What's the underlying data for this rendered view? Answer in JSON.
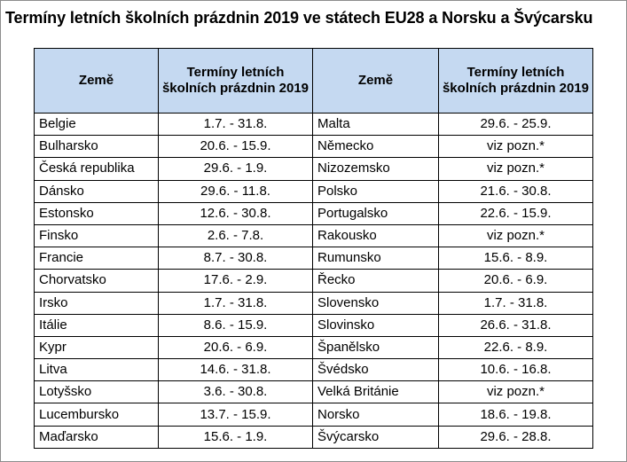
{
  "title": "Termíny letních školních prázdnin 2019 ve státech EU28 a Norsku a Švýcarsku",
  "headers": {
    "country": "Země",
    "dates": "Termíny letních školních prázdnin 2019",
    "country2": "Země",
    "dates2": "Termíny letních školních prázdnin 2019"
  },
  "rows": [
    {
      "country": "Belgie",
      "dates": "1.7. - 31.8.",
      "country2": "Malta",
      "dates2": "29.6. - 25.9."
    },
    {
      "country": "Bulharsko",
      "dates": "20.6. - 15.9.",
      "country2": "Německo",
      "dates2": "viz pozn.*"
    },
    {
      "country": "Česká republika",
      "dates": "29.6. - 1.9.",
      "country2": "Nizozemsko",
      "dates2": "viz pozn.*"
    },
    {
      "country": "Dánsko",
      "dates": "29.6. - 11.8.",
      "country2": "Polsko",
      "dates2": "21.6. - 30.8."
    },
    {
      "country": "Estonsko",
      "dates": "12.6. - 30.8.",
      "country2": "Portugalsko",
      "dates2": "22.6. - 15.9."
    },
    {
      "country": "Finsko",
      "dates": "2.6. - 7.8.",
      "country2": "Rakousko",
      "dates2": "viz pozn.*"
    },
    {
      "country": "Francie",
      "dates": "8.7. - 30.8.",
      "country2": "Rumunsko",
      "dates2": "15.6. - 8.9."
    },
    {
      "country": "Chorvatsko",
      "dates": "17.6. - 2.9.",
      "country2": "Řecko",
      "dates2": "20.6. - 6.9."
    },
    {
      "country": "Irsko",
      "dates": "1.7. - 31.8.",
      "country2": "Slovensko",
      "dates2": "1.7. - 31.8."
    },
    {
      "country": "Itálie",
      "dates": "8.6. - 15.9.",
      "country2": "Slovinsko",
      "dates2": "26.6. - 31.8."
    },
    {
      "country": "Kypr",
      "dates": "20.6. - 6.9.",
      "country2": "Španělsko",
      "dates2": "22.6. - 8.9."
    },
    {
      "country": "Litva",
      "dates": "14.6. - 31.8.",
      "country2": "Švédsko",
      "dates2": "10.6. - 16.8."
    },
    {
      "country": "Lotyšsko",
      "dates": "3.6. - 30.8.",
      "country2": "Velká Británie",
      "dates2": "viz pozn.*"
    },
    {
      "country": "Lucembursko",
      "dates": "13.7. - 15.9.",
      "country2": "Norsko",
      "dates2": "18.6. - 19.8."
    },
    {
      "country": "Maďarsko",
      "dates": "15.6. - 1.9.",
      "country2": "Švýcarsko",
      "dates2": "29.6. - 28.8."
    }
  ],
  "colors": {
    "header_bg": "#c5d9f1",
    "border": "#000000"
  }
}
